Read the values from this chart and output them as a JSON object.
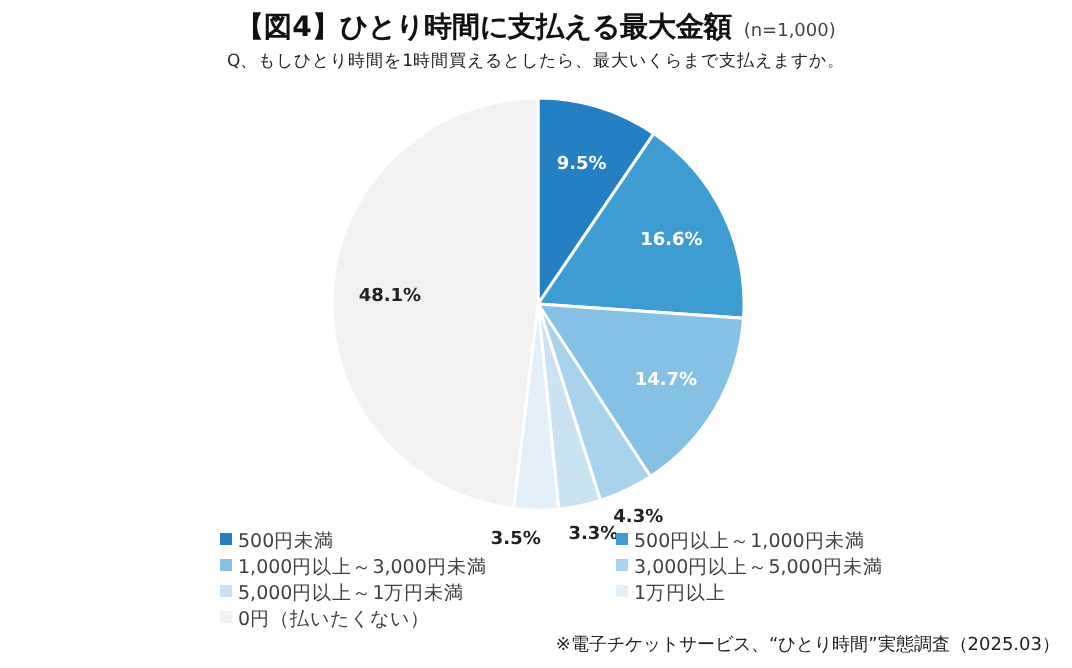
{
  "chart_data": {
    "type": "pie",
    "title": "【図4】ひとり時間に支払える最大金額",
    "subtitle": "(n=1,000)",
    "annotations": [
      "Q、もしひとり時間を1時間買えるとしたら、最大いくらまで支払えますか。",
      "※電子チケットサービス、“ひとり時間”実態調査（2025.03）"
    ],
    "categories": [
      "500円未満",
      "500円以上～1,000円未満",
      "1,000円以上～3,000円未満",
      "3,000円以上～5,000円未満",
      "5,000円以上～1万円未満",
      "1万円以上",
      "0円（払いたくない）"
    ],
    "values": [
      9.5,
      16.6,
      14.7,
      4.3,
      3.3,
      3.5,
      48.1
    ],
    "colors": [
      "#2580c3",
      "#3d9dd3",
      "#85c1e4",
      "#a9d3ec",
      "#c9e3f3",
      "#e3f0f9",
      "#f2f2f2"
    ],
    "value_labels": [
      "9.5%",
      "16.6%",
      "14.7%",
      "4.3%",
      "3.3%",
      "3.5%",
      "48.1%"
    ],
    "legend": "bottom"
  }
}
